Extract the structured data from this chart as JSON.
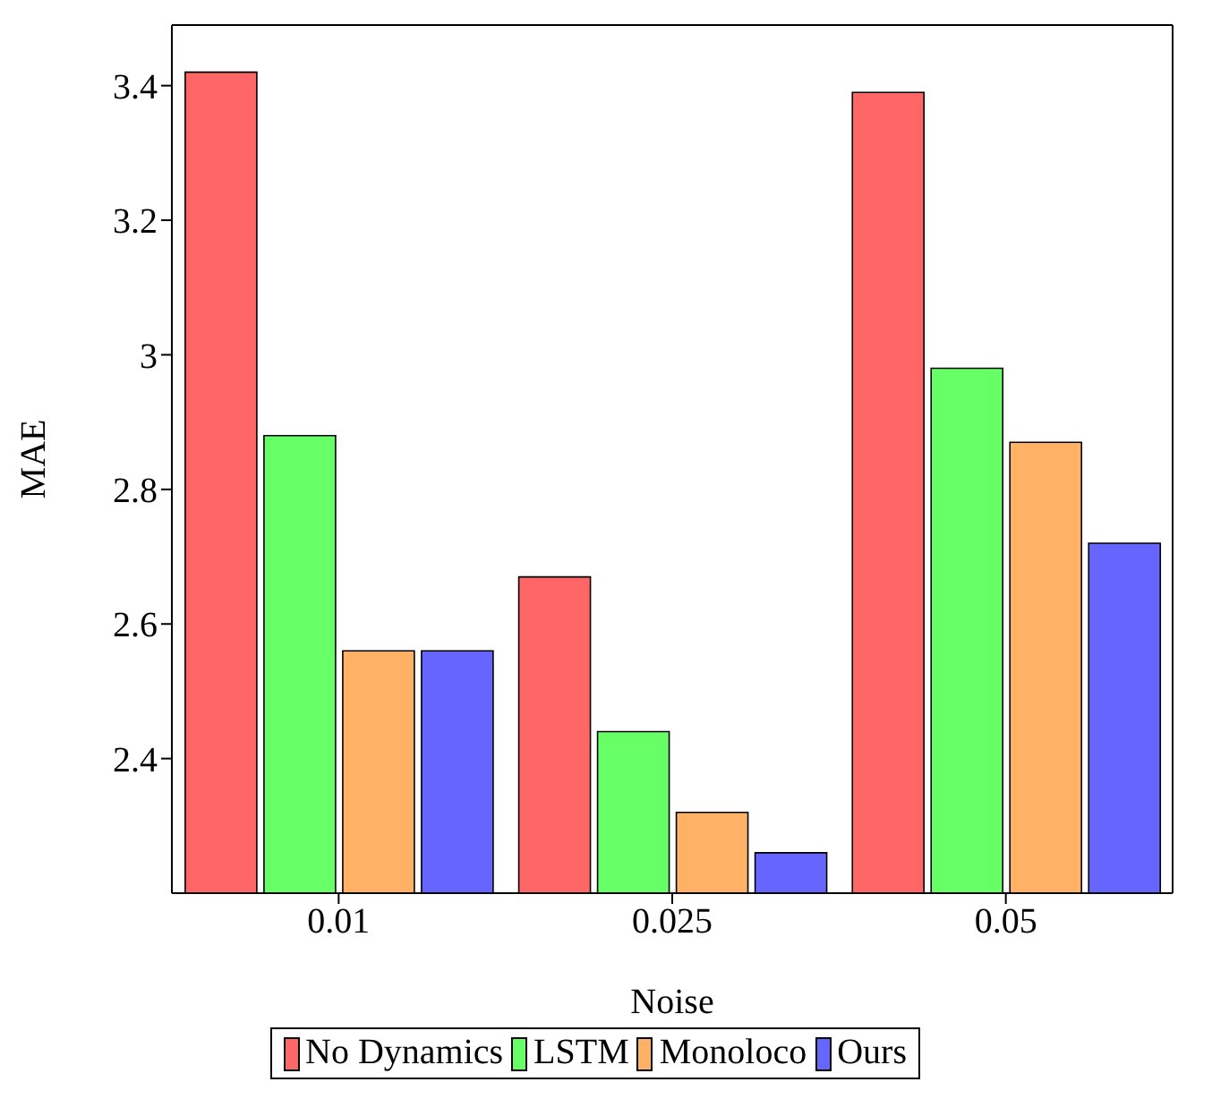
{
  "chart_data": {
    "type": "bar",
    "xlabel": "Noise",
    "ylabel": "MAE",
    "categories": [
      "0.01",
      "0.025",
      "0.05"
    ],
    "series": [
      {
        "name": "No Dynamics",
        "color": "#ff6666",
        "values": [
          3.42,
          2.67,
          3.39
        ]
      },
      {
        "name": "LSTM",
        "color": "#66ff66",
        "values": [
          2.88,
          2.44,
          2.98
        ]
      },
      {
        "name": "Monoloco",
        "color": "#ffb266",
        "values": [
          2.56,
          2.32,
          2.87
        ]
      },
      {
        "name": "Ours",
        "color": "#6666ff",
        "values": [
          2.56,
          2.26,
          2.72
        ]
      }
    ],
    "ylim": [
      2.2,
      3.49
    ],
    "yticks": [
      2.4,
      2.6,
      2.8,
      3,
      3.2,
      3.4
    ],
    "grid": false,
    "legend": "bottom"
  }
}
